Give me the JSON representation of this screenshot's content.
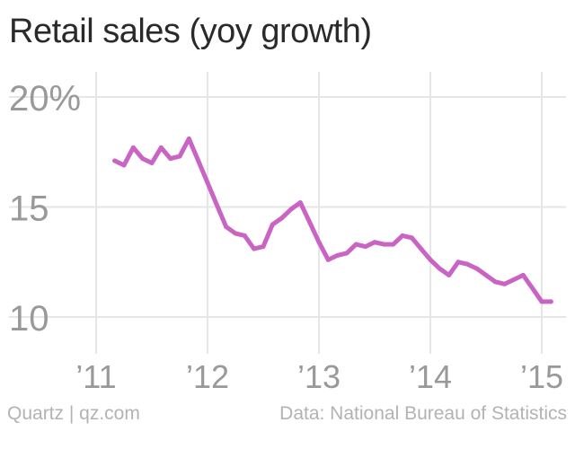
{
  "header": {
    "title": "Retail sales (yoy growth)"
  },
  "footer": {
    "credit": "Quartz | qz.com",
    "source": "Data: National Bureau of Statistics"
  },
  "colors": {
    "line": "#c964c4",
    "grid": "#e6e6e6",
    "tick": "#999999"
  },
  "chart_data": {
    "type": "line",
    "title": "Retail sales (yoy growth)",
    "xlabel": "",
    "ylabel": "",
    "xlim": [
      2011.0,
      2015.167
    ],
    "ylim": [
      9.5,
      20.5
    ],
    "grid": true,
    "x_ticks": [
      {
        "value": 2011,
        "label": "’11"
      },
      {
        "value": 2012,
        "label": "’12"
      },
      {
        "value": 2013,
        "label": "’13"
      },
      {
        "value": 2014,
        "label": "’14"
      },
      {
        "value": 2015,
        "label": "’15"
      }
    ],
    "y_ticks": [
      {
        "value": 20,
        "label": "20%"
      },
      {
        "value": 15,
        "label": "15"
      },
      {
        "value": 10,
        "label": "10"
      }
    ],
    "series": [
      {
        "x": [
          "2011-03",
          "2011-04",
          "2011-05",
          "2011-06",
          "2011-07",
          "2011-08",
          "2011-09",
          "2011-10",
          "2011-11",
          "2011-12",
          "2012-01",
          "2012-02",
          "2012-03",
          "2012-04",
          "2012-05",
          "2012-06",
          "2012-07",
          "2012-08",
          "2012-09",
          "2012-10",
          "2012-11",
          "2012-12",
          "2013-01",
          "2013-02",
          "2013-03",
          "2013-04",
          "2013-05",
          "2013-06",
          "2013-07",
          "2013-08",
          "2013-09",
          "2013-10",
          "2013-11",
          "2013-12",
          "2014-01",
          "2014-02",
          "2014-03",
          "2014-04",
          "2014-05",
          "2014-06",
          "2014-07",
          "2014-08",
          "2014-09",
          "2014-10",
          "2014-11",
          "2014-12",
          "2015-01",
          "2015-02"
        ],
        "values": [
          17.1,
          16.9,
          17.7,
          17.2,
          17.0,
          17.7,
          17.2,
          17.3,
          18.1,
          17.1,
          16.1,
          15.1,
          14.1,
          13.8,
          13.7,
          13.1,
          13.2,
          14.2,
          14.5,
          14.9,
          15.2,
          14.3,
          13.4,
          12.6,
          12.8,
          12.9,
          13.3,
          13.2,
          13.4,
          13.3,
          13.3,
          13.7,
          13.6,
          13.1,
          12.6,
          12.2,
          11.9,
          12.5,
          12.4,
          12.2,
          11.9,
          11.6,
          11.5,
          11.7,
          11.9,
          11.3,
          10.7,
          10.7
        ]
      }
    ]
  }
}
